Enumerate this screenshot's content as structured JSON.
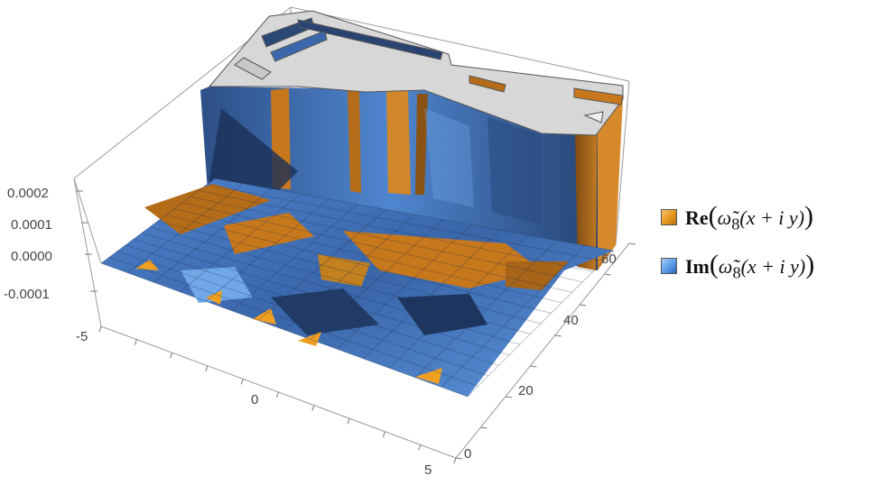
{
  "chart_data": {
    "type": "surface3d",
    "title": "",
    "xlabel": "",
    "ylabel": "",
    "zlabel": "",
    "x_ticks": [
      "-5",
      "0",
      "5"
    ],
    "y_ticks": [
      "0",
      "20",
      "40",
      "60"
    ],
    "z_ticks": [
      "0.0002",
      "0.0001",
      "0.0000",
      "-0.0001"
    ],
    "xlim": [
      -5,
      5
    ],
    "ylim": [
      0,
      68
    ],
    "zlim": [
      -0.00015,
      0.00022
    ],
    "grid": false,
    "boxed": true,
    "clipped_top": true,
    "legend_position": "right",
    "series": [
      {
        "name": "Re(ω̃8(x + i y))",
        "color": "#e8961e"
      },
      {
        "name": "Im(ω̃8(x + i y))",
        "color": "#5a9be8"
      }
    ],
    "notes_visible": "surface rises steeply beyond the plot range for large y; top is clipped (grey caps)"
  },
  "legend": {
    "items": [
      {
        "bold": "Re",
        "open": "(",
        "omega": "ω̃",
        "sub": "8",
        "arg": "(x + i y)",
        "close": ")",
        "color": "#e8961e"
      },
      {
        "bold": "Im",
        "open": "(",
        "omega": "ω̃",
        "sub": "8",
        "arg": "(x + i y)",
        "close": ")",
        "color": "#5a9be8"
      }
    ]
  },
  "colors": {
    "box": "#9a9a9a",
    "surface_dark": "#243f6e",
    "surface_mid": "#3b68ad",
    "surface_light": "#6fa7e8",
    "orange": "#c8781c",
    "cap_grey": "#d7d7d7"
  }
}
